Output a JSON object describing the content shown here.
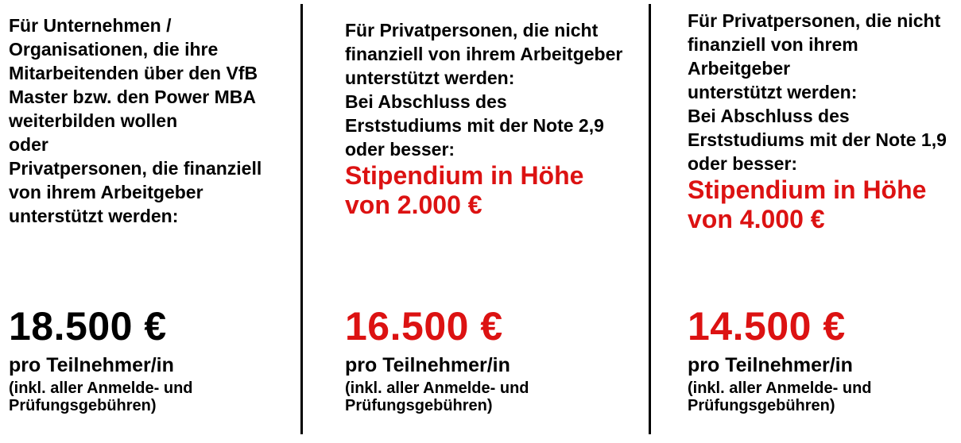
{
  "theme": {
    "background": "#ffffff",
    "text_black": "#000000",
    "accent_red": "#dc1212",
    "divider_color": "#000000"
  },
  "columns": [
    {
      "id": "corporate",
      "intro": "Für Unternehmen /\nOrganisationen, die ihre\nMitarbeitenden über den VfB\nMaster bzw. den Power MBA\nweiterbilden wollen",
      "connector": "oder",
      "audience": "Privatpersonen, die finanziell\nvon ihrem Arbeitgeber\nunterstützt werden:",
      "price": "18.500 €",
      "price_color": "black",
      "per": "pro Teilnehmer/in",
      "note": "(inkl. aller Anmelde- und\nPrüfungsgebühren)"
    },
    {
      "id": "private-grade-2-9",
      "audience": "Für Privatpersonen, die nicht\nfinanziell von ihrem Arbeitgeber\nunterstützt werden:",
      "condition": "Bei Abschluss des\nErststudiums mit der Note 2,9\noder besser:",
      "scholarship": "Stipendium in Höhe\nvon 2.000 €",
      "price": "16.500 €",
      "price_color": "red",
      "per": "pro Teilnehmer/in",
      "note": "(inkl. aller Anmelde- und\nPrüfungsgebühren)"
    },
    {
      "id": "private-grade-1-9",
      "audience": "Für Privatpersonen, die nicht\nfinanziell von ihrem Arbeitgeber\nunterstützt werden:",
      "condition": "Bei Abschluss des\nErststudiums mit der Note 1,9\noder besser:",
      "scholarship": "Stipendium in Höhe\nvon 4.000 €",
      "price": "14.500 €",
      "price_color": "red",
      "per": "pro Teilnehmer/in",
      "note": "(inkl. aller Anmelde- und\nPrüfungsgebühren)"
    }
  ]
}
